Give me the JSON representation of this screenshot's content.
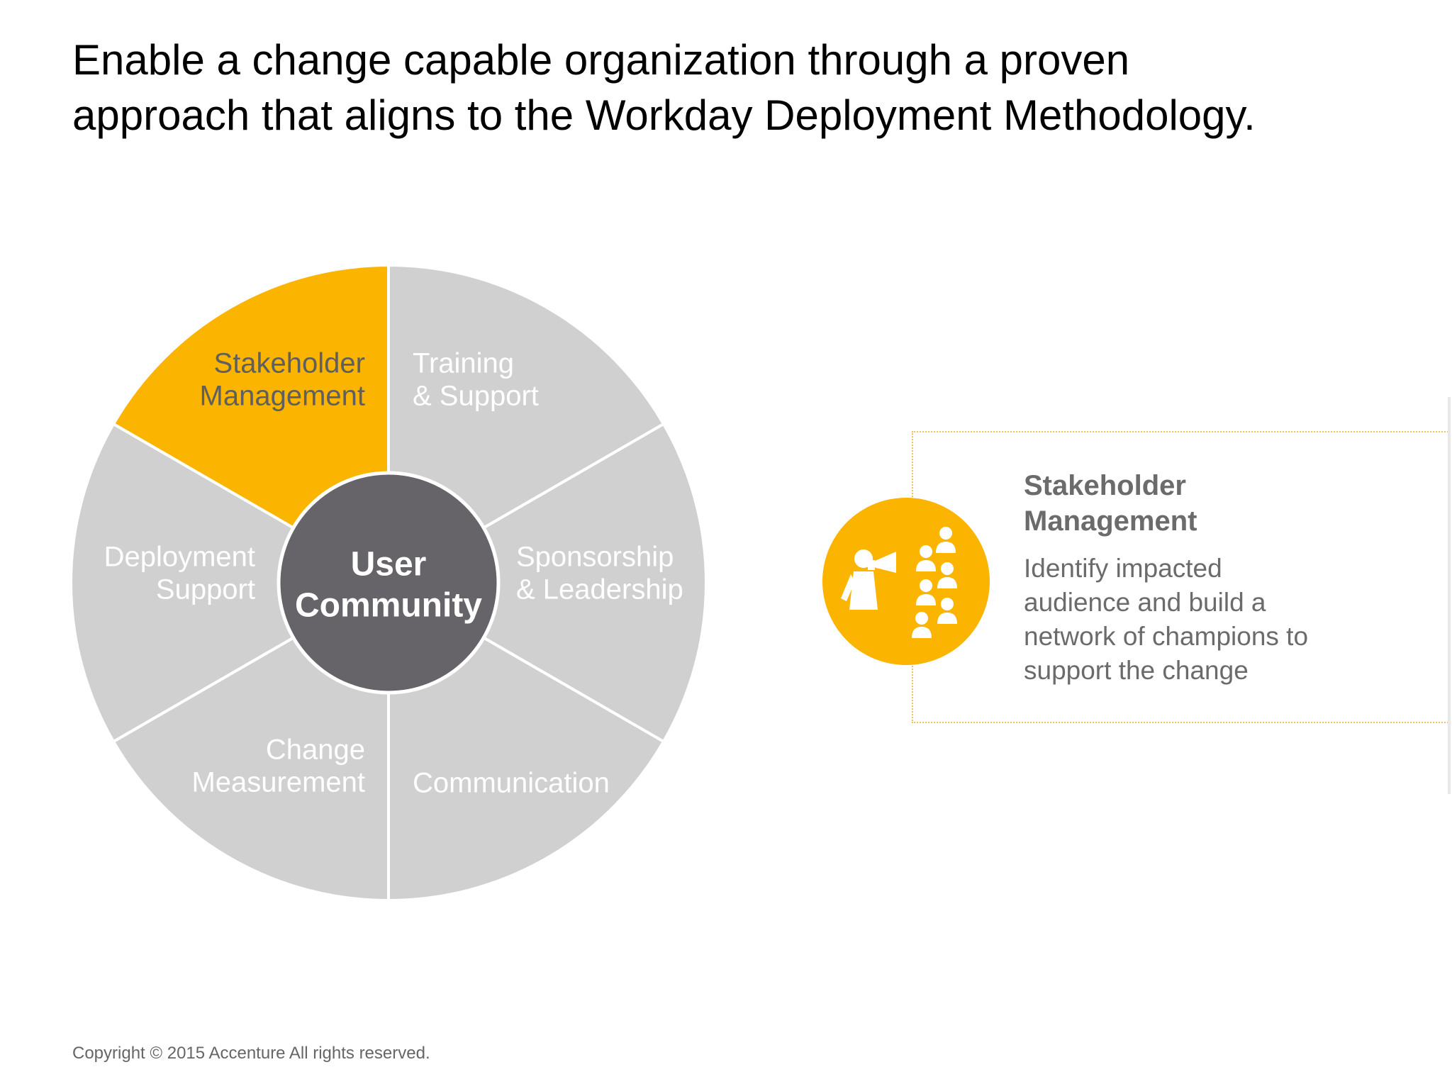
{
  "title": {
    "line1": "Enable a change capable organization through a proven",
    "line2": "approach that aligns to the Workday Deployment Methodology."
  },
  "wheel": {
    "hub": {
      "line1": "User",
      "line2": "Community"
    },
    "segments": [
      {
        "id": "stakeholder-management",
        "lines": [
          "Stakeholder",
          "Management"
        ],
        "highlighted": true
      },
      {
        "id": "training-support",
        "lines": [
          "Training",
          "& Support"
        ],
        "highlighted": false
      },
      {
        "id": "sponsorship-leadership",
        "lines": [
          "Sponsorship",
          "& Leadership"
        ],
        "highlighted": false
      },
      {
        "id": "communication",
        "lines": [
          "Communication"
        ],
        "highlighted": false
      },
      {
        "id": "change-measurement",
        "lines": [
          "Change",
          "Measurement"
        ],
        "highlighted": false
      },
      {
        "id": "deployment-support",
        "lines": [
          "Deployment",
          "Support"
        ],
        "highlighted": false
      }
    ]
  },
  "detail": {
    "heading_line1": "Stakeholder",
    "heading_line2": "Management",
    "body_lines": [
      "Identify impacted",
      "audience and build a",
      "network of champions to",
      "support the change"
    ],
    "icon": "megaphone-audience-icon"
  },
  "footer": {
    "copyright": "Copyright © 2015 Accenture  All rights reserved."
  },
  "colors": {
    "accent": "#fbb400",
    "segment": "#d1d0d1",
    "hub": "#666468",
    "segment_text_light": "#ffffff",
    "segment_text_dark": "#5f5f5f",
    "body_text": "#6b6b6b"
  }
}
